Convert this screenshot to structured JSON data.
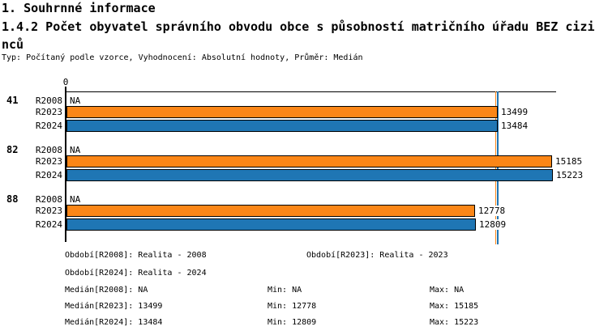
{
  "header": {
    "section_title": "1. Souhrnné informace",
    "subtitle": "1.4.2 Počet obyvatel správního obvodu obce s působností matričního úřadu BEZ cizinců",
    "meta_line": "Typ: Počítaný podle vzorce, Vyhodnocení: Absolutní hodnoty, Průměr: Medián"
  },
  "colors": {
    "bar_2023_orange": "#FB8617",
    "bar_2024_blue": "#1F76B4",
    "axis_black": "#000000",
    "background": "#FFFFFF"
  },
  "chart_data": {
    "type": "bar",
    "orientation": "horizontal",
    "title": "1.4.2 Počet obyvatel správního obvodu obce s působností matričního úřadu BEZ cizinců",
    "x_axis": {
      "zero_label": "0",
      "min": 0,
      "rendered_max": 15223,
      "grid": false
    },
    "categories": [
      "41",
      "82",
      "88"
    ],
    "series": [
      {
        "name": "R2008",
        "color": null
      },
      {
        "name": "R2023",
        "color": "#FB8617"
      },
      {
        "name": "R2024",
        "color": "#1F76B4"
      }
    ],
    "values": {
      "R2008": [
        null,
        null,
        null
      ],
      "R2023": [
        13499,
        15185,
        12778
      ],
      "R2024": [
        13484,
        15223,
        12809
      ]
    },
    "na_text": "NA",
    "median_lines": [
      {
        "series": "R2023",
        "value": 13499,
        "color": "#FB8617"
      },
      {
        "series": "R2024",
        "value": 13484,
        "color": "#1F76B4"
      }
    ],
    "stats": {
      "R2008": {
        "median": null,
        "min": null,
        "max": null
      },
      "R2023": {
        "median": 13499,
        "min": 12778,
        "max": 15185
      },
      "R2024": {
        "median": 13484,
        "min": 12809,
        "max": 15223
      }
    }
  },
  "footer": {
    "legend_rows": [
      [
        "Období[R2008]: Realita - 2008",
        "Období[R2023]: Realita - 2023"
      ],
      [
        "Období[R2024]: Realita - 2024"
      ]
    ],
    "stats_rows": [
      [
        "Medián[R2008]: NA",
        "Min: NA",
        "Max: NA"
      ],
      [
        "Medián[R2023]: 13499",
        "Min: 12778",
        "Max: 15185"
      ],
      [
        "Medián[R2024]: 13484",
        "Min: 12809",
        "Max: 15223"
      ]
    ]
  }
}
